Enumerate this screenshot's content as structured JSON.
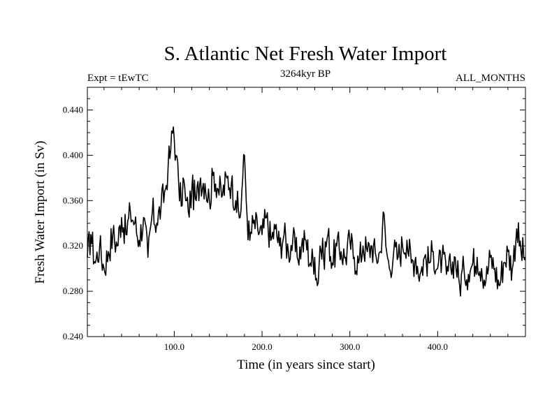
{
  "chart_data": {
    "type": "line",
    "title": "S. Atlantic Net Fresh Water Import",
    "subtitle": "3264kyr BP",
    "expt_label": "Expt = tEwTC",
    "months_label": "ALL_MONTHS",
    "xlabel": "Time (in years since start)",
    "ylabel": "Fresh Water Import (in Sv)",
    "xlim": [
      1,
      500
    ],
    "ylim": [
      0.24,
      0.46
    ],
    "x_ticks": [
      100,
      200,
      300,
      400
    ],
    "x_tick_labels": [
      "100.0",
      "200.0",
      "300.0",
      "400.0"
    ],
    "y_ticks": [
      0.24,
      0.28,
      0.32,
      0.36,
      0.4,
      0.44
    ],
    "y_tick_labels": [
      "0.240",
      "0.280",
      "0.320",
      "0.360",
      "0.400",
      "0.440"
    ],
    "series": [
      {
        "name": "net fresh water import",
        "color": "#000000",
        "x": [
          1,
          5,
          10,
          15,
          20,
          25,
          30,
          35,
          40,
          45,
          50,
          55,
          60,
          65,
          70,
          75,
          80,
          85,
          90,
          93,
          96,
          99,
          102,
          105,
          108,
          110,
          113,
          116,
          120,
          125,
          130,
          135,
          140,
          145,
          150,
          155,
          160,
          165,
          170,
          175,
          178,
          180,
          183,
          186,
          190,
          195,
          200,
          205,
          210,
          215,
          220,
          225,
          230,
          235,
          240,
          245,
          250,
          255,
          260,
          263,
          266,
          270,
          275,
          280,
          285,
          290,
          295,
          300,
          305,
          310,
          315,
          320,
          325,
          330,
          335,
          338,
          341,
          345,
          350,
          355,
          360,
          365,
          370,
          375,
          380,
          385,
          390,
          395,
          400,
          405,
          410,
          415,
          420,
          425,
          430,
          435,
          440,
          445,
          450,
          455,
          460,
          465,
          470,
          475,
          480,
          485,
          490,
          495,
          500
        ],
        "y": [
          0.31,
          0.33,
          0.305,
          0.32,
          0.3,
          0.315,
          0.33,
          0.32,
          0.345,
          0.33,
          0.35,
          0.34,
          0.325,
          0.345,
          0.31,
          0.35,
          0.34,
          0.355,
          0.37,
          0.39,
          0.405,
          0.425,
          0.4,
          0.375,
          0.355,
          0.38,
          0.36,
          0.35,
          0.37,
          0.36,
          0.38,
          0.375,
          0.36,
          0.385,
          0.37,
          0.365,
          0.38,
          0.375,
          0.36,
          0.345,
          0.38,
          0.4,
          0.345,
          0.325,
          0.34,
          0.335,
          0.33,
          0.345,
          0.325,
          0.335,
          0.32,
          0.33,
          0.315,
          0.325,
          0.31,
          0.32,
          0.325,
          0.305,
          0.31,
          0.285,
          0.32,
          0.31,
          0.33,
          0.305,
          0.32,
          0.315,
          0.31,
          0.325,
          0.31,
          0.305,
          0.32,
          0.315,
          0.32,
          0.31,
          0.315,
          0.35,
          0.32,
          0.3,
          0.315,
          0.31,
          0.32,
          0.325,
          0.305,
          0.31,
          0.295,
          0.31,
          0.305,
          0.315,
          0.3,
          0.31,
          0.295,
          0.3,
          0.31,
          0.285,
          0.3,
          0.295,
          0.305,
          0.31,
          0.3,
          0.29,
          0.31,
          0.3,
          0.285,
          0.305,
          0.315,
          0.3,
          0.335,
          0.315,
          0.31
        ]
      }
    ]
  }
}
